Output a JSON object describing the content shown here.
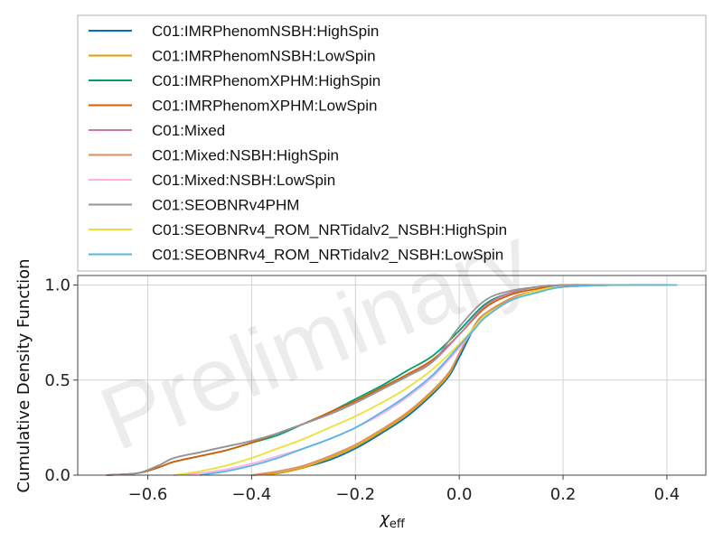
{
  "chart_data": {
    "type": "line",
    "title": "",
    "xlabel": "χ_eff",
    "ylabel": "Cumulative Density Function",
    "xlim": [
      -0.735,
      0.475
    ],
    "ylim": [
      0,
      1.05
    ],
    "xticks": [
      -0.6,
      -0.4,
      -0.2,
      0.0,
      0.2,
      0.4
    ],
    "xtick_labels": [
      "−0.6",
      "−0.4",
      "−0.2",
      "0.0",
      "0.2",
      "0.4"
    ],
    "yticks": [
      0.0,
      0.5,
      1.0
    ],
    "ytick_labels": [
      "0.0",
      "0.5",
      "1.0"
    ],
    "grid": true,
    "legend_position": "above plot",
    "watermark": "Preliminary",
    "series": [
      {
        "name": "C01:IMRPhenomNSBH:HighSpin",
        "color": "#0072B2",
        "x": [
          -0.4,
          -0.35,
          -0.3,
          -0.25,
          -0.2,
          -0.15,
          -0.1,
          -0.05,
          -0.02,
          0.0,
          0.03,
          0.05,
          0.1,
          0.15,
          0.2,
          0.3,
          0.4
        ],
        "y": [
          0.0,
          0.01,
          0.04,
          0.08,
          0.14,
          0.22,
          0.31,
          0.43,
          0.52,
          0.62,
          0.78,
          0.84,
          0.93,
          0.97,
          0.99,
          1.0,
          1.0
        ]
      },
      {
        "name": "C01:IMRPhenomNSBH:LowSpin",
        "color": "#E69F00",
        "x": [
          -0.4,
          -0.35,
          -0.3,
          -0.25,
          -0.2,
          -0.15,
          -0.1,
          -0.05,
          -0.02,
          0.0,
          0.03,
          0.05,
          0.1,
          0.15,
          0.2,
          0.3,
          0.4
        ],
        "y": [
          0.0,
          0.01,
          0.04,
          0.09,
          0.15,
          0.23,
          0.32,
          0.44,
          0.53,
          0.64,
          0.79,
          0.85,
          0.93,
          0.97,
          0.99,
          1.0,
          1.0
        ]
      },
      {
        "name": "C01:IMRPhenomXPHM:HighSpin",
        "color": "#009E73",
        "x": [
          -0.68,
          -0.62,
          -0.58,
          -0.55,
          -0.5,
          -0.45,
          -0.4,
          -0.35,
          -0.3,
          -0.25,
          -0.2,
          -0.15,
          -0.1,
          -0.05,
          0.0,
          0.05,
          0.1,
          0.15,
          0.2,
          0.3,
          0.4
        ],
        "y": [
          0.0,
          0.01,
          0.04,
          0.07,
          0.1,
          0.13,
          0.17,
          0.21,
          0.27,
          0.33,
          0.4,
          0.47,
          0.55,
          0.63,
          0.76,
          0.9,
          0.96,
          0.99,
          1.0,
          1.0,
          1.0
        ]
      },
      {
        "name": "C01:IMRPhenomXPHM:LowSpin",
        "color": "#D55E00",
        "x": [
          -0.68,
          -0.62,
          -0.58,
          -0.55,
          -0.5,
          -0.45,
          -0.4,
          -0.35,
          -0.3,
          -0.25,
          -0.2,
          -0.15,
          -0.1,
          -0.05,
          0.0,
          0.05,
          0.1,
          0.15,
          0.2,
          0.3,
          0.4
        ],
        "y": [
          0.0,
          0.01,
          0.04,
          0.07,
          0.1,
          0.13,
          0.17,
          0.22,
          0.27,
          0.33,
          0.39,
          0.46,
          0.53,
          0.61,
          0.74,
          0.88,
          0.95,
          0.98,
          1.0,
          1.0,
          1.0
        ]
      },
      {
        "name": "C01:Mixed",
        "color": "#CC79A7",
        "x": [
          -0.68,
          -0.62,
          -0.58,
          -0.55,
          -0.5,
          -0.45,
          -0.4,
          -0.35,
          -0.3,
          -0.25,
          -0.2,
          -0.15,
          -0.1,
          -0.05,
          0.0,
          0.05,
          0.1,
          0.15,
          0.2,
          0.3,
          0.4
        ],
        "y": [
          0.0,
          0.01,
          0.05,
          0.09,
          0.12,
          0.15,
          0.18,
          0.22,
          0.27,
          0.32,
          0.38,
          0.45,
          0.52,
          0.6,
          0.74,
          0.89,
          0.96,
          0.99,
          1.0,
          1.0,
          1.0
        ]
      },
      {
        "name": "C01:Mixed:NSBH:HighSpin",
        "color": "#E08E5B",
        "x": [
          -0.4,
          -0.35,
          -0.3,
          -0.25,
          -0.2,
          -0.15,
          -0.1,
          -0.05,
          -0.02,
          0.0,
          0.03,
          0.05,
          0.1,
          0.15,
          0.2,
          0.3,
          0.4
        ],
        "y": [
          0.0,
          0.02,
          0.05,
          0.1,
          0.16,
          0.24,
          0.33,
          0.45,
          0.54,
          0.64,
          0.79,
          0.85,
          0.93,
          0.97,
          0.99,
          1.0,
          1.0
        ]
      },
      {
        "name": "C01:Mixed:NSBH:LowSpin",
        "color": "#FBAFE4",
        "x": [
          -0.55,
          -0.5,
          -0.45,
          -0.4,
          -0.35,
          -0.3,
          -0.25,
          -0.2,
          -0.15,
          -0.1,
          -0.05,
          0.0,
          0.03,
          0.05,
          0.1,
          0.15,
          0.2,
          0.3,
          0.4
        ],
        "y": [
          0.0,
          0.01,
          0.03,
          0.06,
          0.1,
          0.14,
          0.19,
          0.25,
          0.32,
          0.41,
          0.52,
          0.67,
          0.77,
          0.83,
          0.92,
          0.97,
          0.99,
          1.0,
          1.0
        ]
      },
      {
        "name": "C01:SEOBNRv4PHM",
        "color": "#949494",
        "x": [
          -0.68,
          -0.62,
          -0.58,
          -0.55,
          -0.5,
          -0.45,
          -0.4,
          -0.35,
          -0.3,
          -0.25,
          -0.2,
          -0.15,
          -0.1,
          -0.05,
          0.0,
          0.05,
          0.1,
          0.15,
          0.2,
          0.3,
          0.4
        ],
        "y": [
          0.0,
          0.01,
          0.05,
          0.09,
          0.12,
          0.15,
          0.18,
          0.22,
          0.27,
          0.32,
          0.38,
          0.45,
          0.52,
          0.6,
          0.78,
          0.92,
          0.97,
          0.99,
          1.0,
          1.0,
          1.0
        ]
      },
      {
        "name": "C01:SEOBNRv4_ROM_NRTidalv2_NSBH:HighSpin",
        "color": "#ECE133",
        "x": [
          -0.55,
          -0.5,
          -0.45,
          -0.4,
          -0.35,
          -0.3,
          -0.25,
          -0.2,
          -0.15,
          -0.1,
          -0.05,
          0.0,
          0.03,
          0.05,
          0.1,
          0.15,
          0.2,
          0.3,
          0.4
        ],
        "y": [
          0.0,
          0.02,
          0.05,
          0.09,
          0.14,
          0.19,
          0.25,
          0.31,
          0.38,
          0.46,
          0.56,
          0.69,
          0.78,
          0.84,
          0.92,
          0.97,
          0.99,
          1.0,
          1.0
        ]
      },
      {
        "name": "C01:SEOBNRv4_ROM_NRTidalv2_NSBH:LowSpin",
        "color": "#56B4E9",
        "x": [
          -0.5,
          -0.45,
          -0.4,
          -0.35,
          -0.3,
          -0.25,
          -0.2,
          -0.15,
          -0.1,
          -0.05,
          0.0,
          0.03,
          0.05,
          0.1,
          0.15,
          0.2,
          0.3,
          0.42
        ],
        "y": [
          0.0,
          0.02,
          0.05,
          0.09,
          0.14,
          0.19,
          0.25,
          0.33,
          0.42,
          0.53,
          0.68,
          0.77,
          0.83,
          0.92,
          0.96,
          0.99,
          1.0,
          1.0
        ]
      }
    ]
  }
}
